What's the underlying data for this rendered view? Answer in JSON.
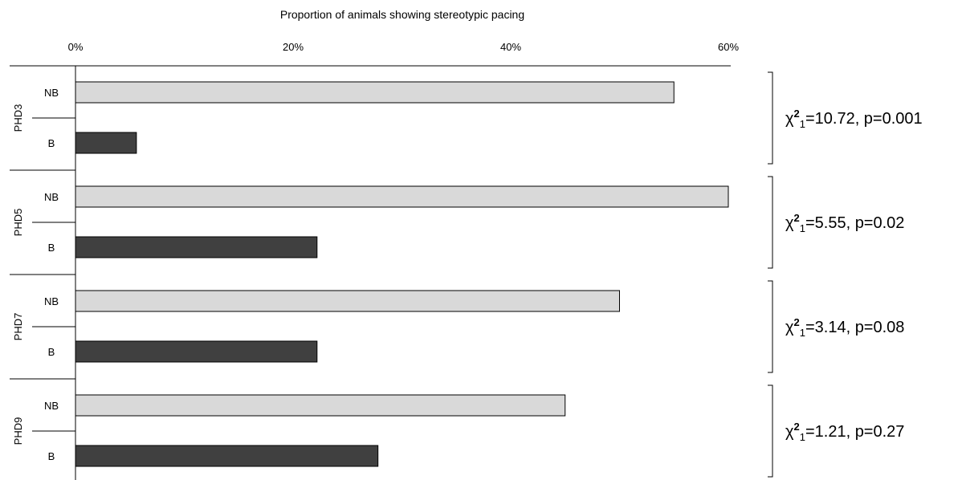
{
  "chart_data": {
    "type": "bar",
    "orientation": "horizontal",
    "title": "Proportion of animals showing stereotypic pacing",
    "xlim": [
      0,
      60
    ],
    "x_ticks": [
      {
        "value": 0,
        "label": "0%"
      },
      {
        "value": 20,
        "label": "20%"
      },
      {
        "value": 40,
        "label": "40%"
      },
      {
        "value": 60,
        "label": "60%"
      }
    ],
    "groups": [
      {
        "label": "PHD3",
        "stat": {
          "chi": "χ",
          "sup": "2",
          "sub": "1",
          "rest": "=10.72, p=0.001"
        },
        "bars": [
          {
            "label": "NB",
            "value": 55
          },
          {
            "label": "B",
            "value": 5.6
          }
        ]
      },
      {
        "label": "PHD5",
        "stat": {
          "chi": "χ",
          "sup": "2",
          "sub": "1",
          "rest": "=5.55, p=0.02"
        },
        "bars": [
          {
            "label": "NB",
            "value": 60
          },
          {
            "label": "B",
            "value": 22.2
          }
        ]
      },
      {
        "label": "PHD7",
        "stat": {
          "chi": "χ",
          "sup": "2",
          "sub": "1",
          "rest": "=3.14, p=0.08"
        },
        "bars": [
          {
            "label": "NB",
            "value": 50
          },
          {
            "label": "B",
            "value": 22.2
          }
        ]
      },
      {
        "label": "PHD9",
        "stat": {
          "chi": "χ",
          "sup": "2",
          "sub": "1",
          "rest": "=1.21, p=0.27"
        },
        "bars": [
          {
            "label": "NB",
            "value": 45
          },
          {
            "label": "B",
            "value": 27.8
          }
        ]
      }
    ],
    "colors": {
      "NB": "#d9d9d9",
      "B": "#404040",
      "stroke": "#000000"
    },
    "grid": false,
    "legend": "none"
  }
}
